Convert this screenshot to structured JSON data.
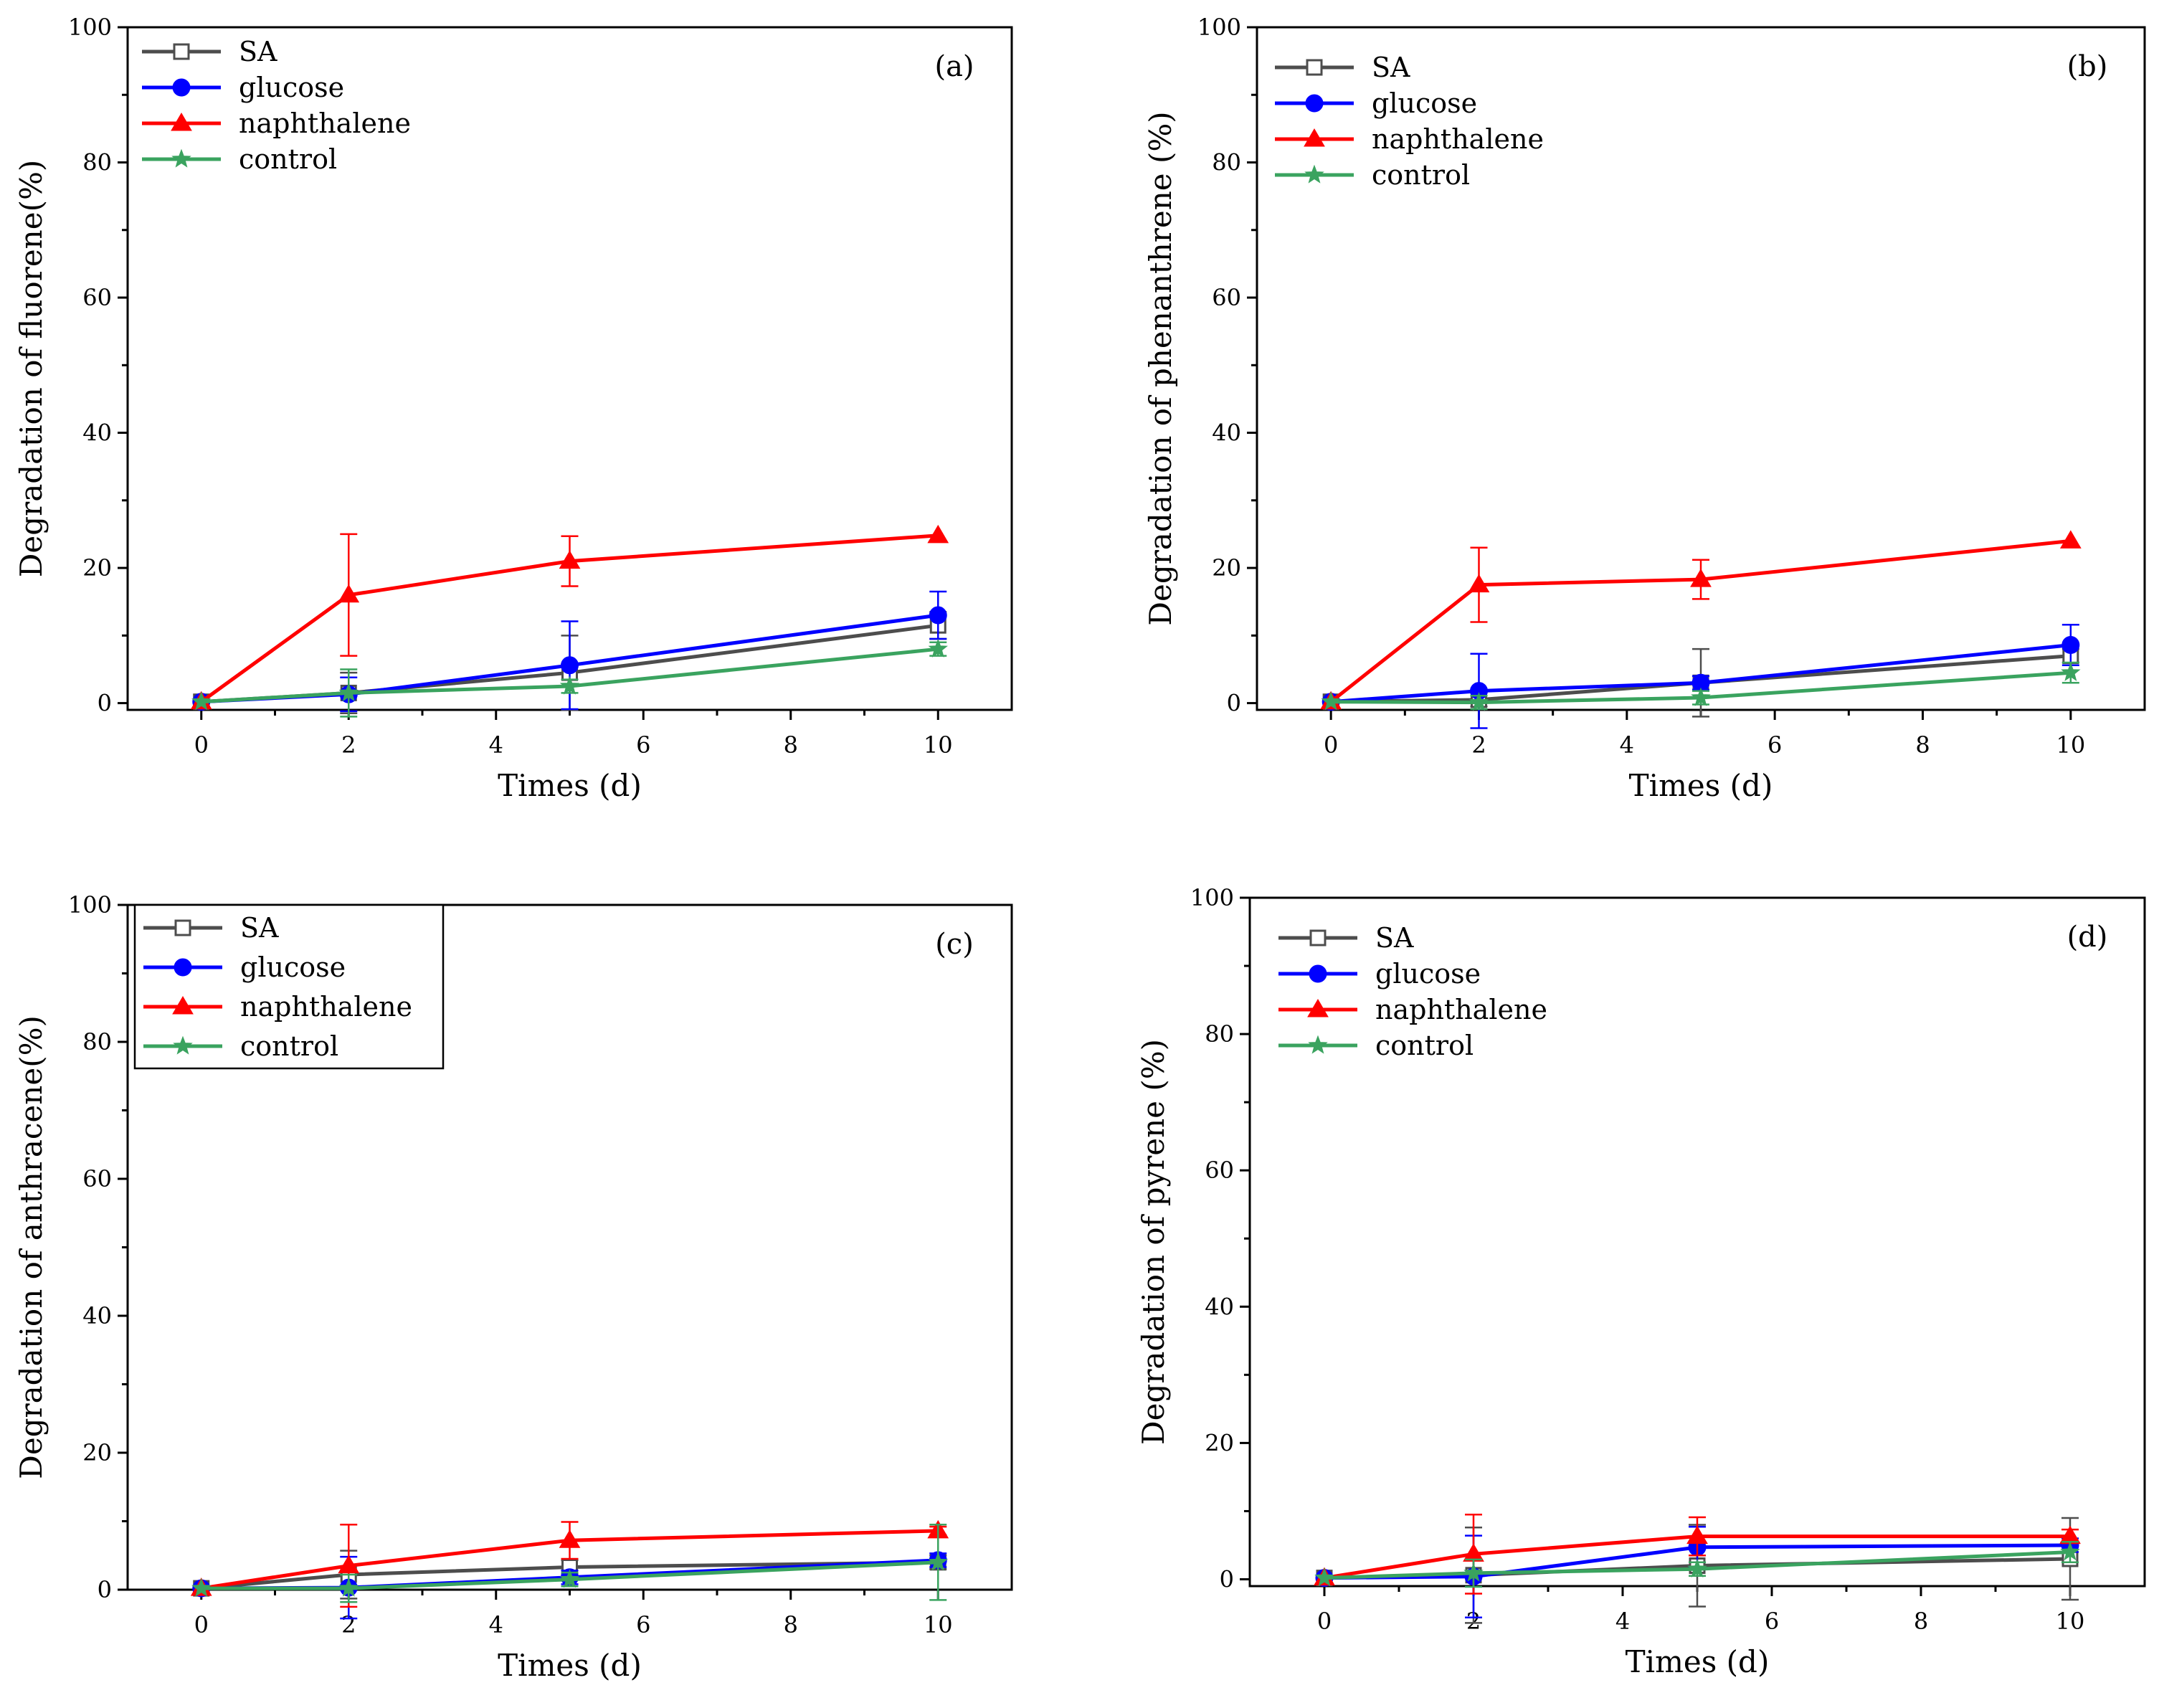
{
  "series_style": [
    {
      "name": "SA",
      "color": "#4d4d4d",
      "marker": "square-open"
    },
    {
      "name": "glucose",
      "color": "#0000ff",
      "marker": "circle"
    },
    {
      "name": "naphthalene",
      "color": "#ff0000",
      "marker": "triangle"
    },
    {
      "name": "control",
      "color": "#3aa35f",
      "marker": "star"
    }
  ],
  "chart_data": [
    {
      "type": "line",
      "panel_label": "(a)",
      "xlabel": "Times (d)",
      "ylabel": "Degradation of fluorene(%)",
      "xlim": [
        -1,
        11
      ],
      "ylim": [
        -1,
        100
      ],
      "xticks": [
        0,
        2,
        4,
        6,
        8,
        10
      ],
      "yticks": [
        0,
        20,
        40,
        60,
        80,
        100
      ],
      "grid": false,
      "legend": "top-left",
      "x": [
        0,
        2,
        5,
        10
      ],
      "series": [
        {
          "name": "SA",
          "values": [
            0.2,
            1.5,
            4.5,
            11.5
          ],
          "errors": [
            0.2,
            3.0,
            5.5,
            2.0
          ]
        },
        {
          "name": "glucose",
          "values": [
            0.2,
            1.3,
            5.6,
            13.0
          ],
          "errors": [
            0.2,
            2.5,
            6.5,
            3.5
          ]
        },
        {
          "name": "naphthalene",
          "values": [
            0.2,
            16.0,
            21.0,
            24.8
          ],
          "errors": [
            0.2,
            9.0,
            3.7,
            0.4
          ]
        },
        {
          "name": "control",
          "values": [
            0.2,
            1.5,
            2.5,
            8.0
          ],
          "errors": [
            0.2,
            3.5,
            1.0,
            1.0
          ]
        }
      ]
    },
    {
      "type": "line",
      "panel_label": "(b)",
      "xlabel": "Times (d)",
      "ylabel": "Degradation of phenanthrene (%)",
      "xlim": [
        -1,
        11
      ],
      "ylim": [
        -1,
        100
      ],
      "xticks": [
        0,
        2,
        4,
        6,
        8,
        10
      ],
      "yticks": [
        0,
        20,
        40,
        60,
        80,
        100
      ],
      "grid": false,
      "legend": "top-left",
      "x": [
        0,
        2,
        5,
        10
      ],
      "series": [
        {
          "name": "SA",
          "values": [
            0.2,
            0.5,
            3.0,
            7.0
          ],
          "errors": [
            0.2,
            1.0,
            5.0,
            1.0
          ]
        },
        {
          "name": "glucose",
          "values": [
            0.2,
            1.8,
            3.0,
            8.6
          ],
          "errors": [
            0.2,
            5.5,
            1.0,
            3.0
          ]
        },
        {
          "name": "naphthalene",
          "values": [
            0.2,
            17.5,
            18.3,
            24.0
          ],
          "errors": [
            0.2,
            5.5,
            2.9,
            0.4
          ]
        },
        {
          "name": "control",
          "values": [
            0.2,
            0.1,
            0.8,
            4.5
          ],
          "errors": [
            0.2,
            1.0,
            1.0,
            1.5
          ]
        }
      ]
    },
    {
      "type": "line",
      "panel_label": "(c)",
      "xlabel": "Times (d)",
      "ylabel": "Degradation of anthracene(%)",
      "xlim": [
        -1,
        11
      ],
      "ylim": [
        0,
        100
      ],
      "xticks": [
        0,
        2,
        4,
        6,
        8,
        10
      ],
      "yticks": [
        0,
        20,
        40,
        60,
        80,
        100
      ],
      "grid": false,
      "legend": "top-left",
      "x": [
        0,
        2,
        5,
        10
      ],
      "series": [
        {
          "name": "SA",
          "values": [
            0.2,
            2.2,
            3.3,
            4.0
          ],
          "errors": [
            0.2,
            3.5,
            1.0,
            1.0
          ]
        },
        {
          "name": "glucose",
          "values": [
            0.2,
            0.3,
            1.8,
            4.3
          ],
          "errors": [
            0.2,
            4.5,
            1.0,
            1.0
          ]
        },
        {
          "name": "naphthalene",
          "values": [
            0.2,
            3.5,
            7.2,
            8.6
          ],
          "errors": [
            0.2,
            6.0,
            2.7,
            0.6
          ]
        },
        {
          "name": "control",
          "values": [
            0.2,
            0.2,
            1.5,
            4.0
          ],
          "errors": [
            0.2,
            2.0,
            1.0,
            5.5
          ]
        }
      ]
    },
    {
      "type": "line",
      "panel_label": "(d)",
      "xlabel": "Times (d)",
      "ylabel": "Degradation of pyrene (%)",
      "xlim": [
        -1,
        11
      ],
      "ylim": [
        -1,
        100
      ],
      "xticks": [
        0,
        2,
        4,
        6,
        8,
        10
      ],
      "yticks": [
        0,
        20,
        40,
        60,
        80,
        100
      ],
      "grid": false,
      "legend": "top-left",
      "x": [
        0,
        2,
        5,
        10
      ],
      "series": [
        {
          "name": "SA",
          "values": [
            0.2,
            0.6,
            2.0,
            3.0
          ],
          "errors": [
            0.2,
            7.0,
            6.0,
            6.0
          ]
        },
        {
          "name": "glucose",
          "values": [
            0.2,
            0.4,
            4.7,
            5.0
          ],
          "errors": [
            0.2,
            6.0,
            3.0,
            1.0
          ]
        },
        {
          "name": "naphthalene",
          "values": [
            0.2,
            3.7,
            6.3,
            6.3
          ],
          "errors": [
            0.2,
            5.8,
            2.8,
            1.0
          ]
        },
        {
          "name": "control",
          "values": [
            0.2,
            0.9,
            1.5,
            4.0
          ],
          "errors": [
            0.2,
            2.0,
            1.0,
            1.5
          ]
        }
      ]
    }
  ]
}
